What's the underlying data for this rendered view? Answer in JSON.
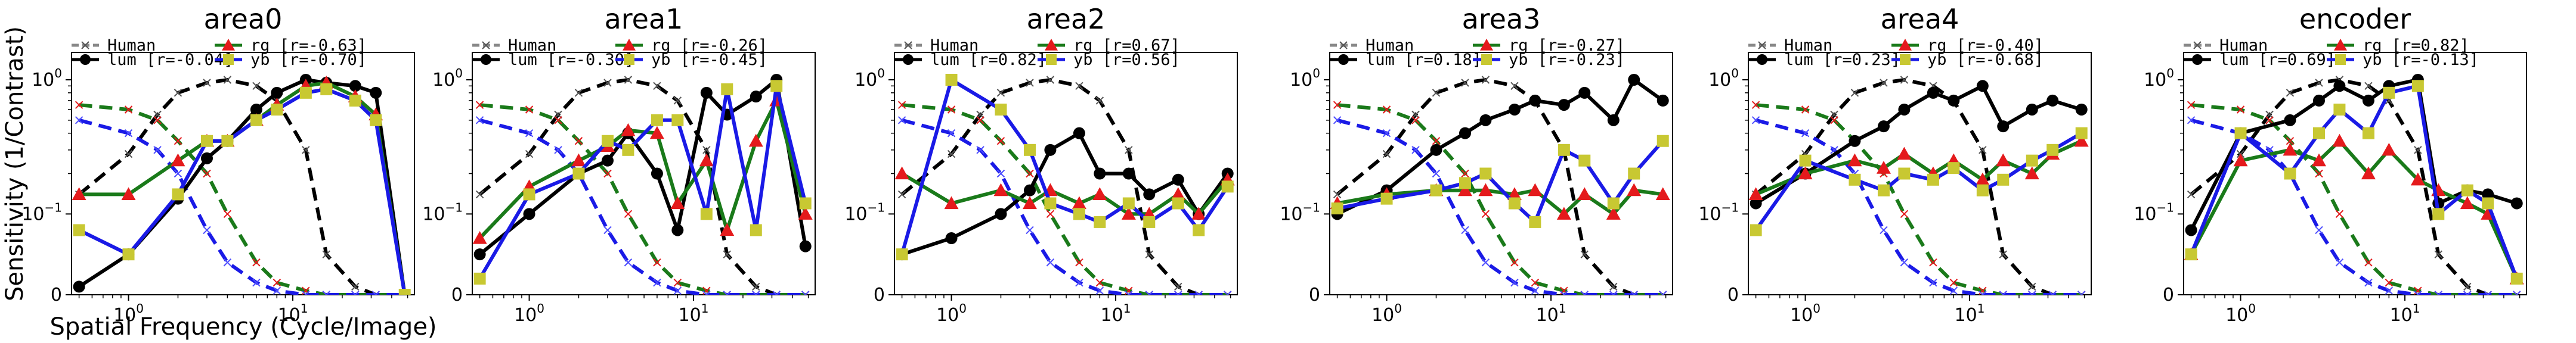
{
  "figure": {
    "ylabel": "Sensitivity (1/Contrast)",
    "xlabel": "Spatial Frequency (Cycle/Image)"
  },
  "colors": {
    "human": "#000000",
    "lum": "#000000",
    "rg": "#1a7a1a",
    "yb": "#1a1ae6",
    "rg_marker": "#e41a1c",
    "yb_marker": "#c8c832",
    "human_rg_marker": "#e41a1c",
    "human_yb_marker": "#4d4dff"
  },
  "chart_data": [
    {
      "type": "line",
      "title": "area0",
      "xscale": "symlog-like",
      "yscale": "symlog",
      "legend": [
        "Human",
        "lum [r=-0.04]",
        "rg    [r=-0.63]",
        "yb    [r=-0.70]"
      ],
      "x": [
        0.5,
        1,
        2,
        3,
        4,
        6,
        8,
        12,
        16,
        24,
        32,
        48
      ],
      "series": [
        {
          "name": "lum",
          "values": [
            0.01,
            0.05,
            0.13,
            0.26,
            0.35,
            0.6,
            0.8,
            1.0,
            0.95,
            0.9,
            0.8,
            0.0
          ]
        },
        {
          "name": "rg",
          "values": [
            0.14,
            0.14,
            0.25,
            0.35,
            0.35,
            0.5,
            0.65,
            0.9,
            0.95,
            0.75,
            0.55,
            0.0
          ]
        },
        {
          "name": "yb",
          "values": [
            0.08,
            0.05,
            0.14,
            0.35,
            0.35,
            0.5,
            0.6,
            0.8,
            0.85,
            0.7,
            0.5,
            0.0
          ]
        }
      ]
    },
    {
      "type": "line",
      "title": "area1",
      "xscale": "symlog-like",
      "yscale": "symlog",
      "legend": [
        "Human",
        "lum [r=-0.30]",
        "rg    [r=-0.26]",
        "yb    [r=-0.45]"
      ],
      "x": [
        0.5,
        1,
        2,
        3,
        4,
        6,
        8,
        12,
        16,
        24,
        32,
        48
      ],
      "series": [
        {
          "name": "lum",
          "values": [
            0.05,
            0.1,
            0.2,
            0.25,
            0.4,
            0.2,
            0.08,
            0.8,
            0.55,
            0.75,
            1.0,
            0.06
          ]
        },
        {
          "name": "rg",
          "values": [
            0.07,
            0.16,
            0.25,
            0.32,
            0.42,
            0.4,
            0.12,
            0.25,
            0.08,
            0.35,
            0.7,
            0.1
          ]
        },
        {
          "name": "yb",
          "values": [
            0.02,
            0.14,
            0.2,
            0.35,
            0.3,
            0.5,
            0.5,
            0.1,
            0.85,
            0.08,
            0.9,
            0.12
          ]
        }
      ]
    },
    {
      "type": "line",
      "title": "area2",
      "xscale": "symlog-like",
      "yscale": "symlog",
      "legend": [
        "Human",
        "lum [r=0.82]",
        "rg    [r=0.67]",
        "yb    [r=0.56]"
      ],
      "x": [
        0.5,
        1,
        2,
        3,
        4,
        6,
        8,
        12,
        16,
        24,
        32,
        48
      ],
      "series": [
        {
          "name": "lum",
          "values": [
            0.05,
            0.07,
            0.1,
            0.15,
            0.3,
            0.4,
            0.2,
            0.2,
            0.14,
            0.18,
            0.1,
            0.2
          ]
        },
        {
          "name": "rg",
          "values": [
            0.2,
            0.12,
            0.15,
            0.12,
            0.15,
            0.12,
            0.14,
            0.1,
            0.1,
            0.14,
            0.1,
            0.18
          ]
        },
        {
          "name": "yb",
          "values": [
            0.05,
            1.0,
            0.6,
            0.3,
            0.12,
            0.1,
            0.09,
            0.12,
            0.09,
            0.12,
            0.08,
            0.16
          ]
        }
      ]
    },
    {
      "type": "line",
      "title": "area3",
      "xscale": "symlog-like",
      "yscale": "symlog",
      "legend": [
        "Human",
        "lum [r=0.18]",
        "rg    [r=-0.27]",
        "yb    [r=-0.23]"
      ],
      "x": [
        0.5,
        1,
        2,
        3,
        4,
        6,
        8,
        12,
        16,
        24,
        32,
        48
      ],
      "series": [
        {
          "name": "lum",
          "values": [
            0.1,
            0.15,
            0.3,
            0.4,
            0.5,
            0.6,
            0.7,
            0.65,
            0.8,
            0.5,
            1.0,
            0.7
          ]
        },
        {
          "name": "rg",
          "values": [
            0.12,
            0.14,
            0.15,
            0.15,
            0.15,
            0.14,
            0.15,
            0.1,
            0.14,
            0.1,
            0.15,
            0.14
          ]
        },
        {
          "name": "yb",
          "values": [
            0.11,
            0.13,
            0.15,
            0.17,
            0.2,
            0.12,
            0.09,
            0.3,
            0.25,
            0.12,
            0.2,
            0.35
          ]
        }
      ]
    },
    {
      "type": "line",
      "title": "area4",
      "xscale": "symlog-like",
      "yscale": "symlog",
      "legend": [
        "Human",
        "lum [r=0.23]",
        "rg    [r=-0.40]",
        "yb    [r=-0.68]"
      ],
      "x": [
        0.5,
        1,
        2,
        3,
        4,
        6,
        8,
        12,
        16,
        24,
        32,
        48
      ],
      "series": [
        {
          "name": "lum",
          "values": [
            0.12,
            0.2,
            0.35,
            0.45,
            0.6,
            0.8,
            0.7,
            0.9,
            0.45,
            0.6,
            0.7,
            0.6
          ]
        },
        {
          "name": "rg",
          "values": [
            0.14,
            0.2,
            0.25,
            0.22,
            0.28,
            0.2,
            0.25,
            0.18,
            0.25,
            0.2,
            0.28,
            0.35
          ]
        },
        {
          "name": "yb",
          "values": [
            0.08,
            0.25,
            0.18,
            0.15,
            0.2,
            0.18,
            0.22,
            0.15,
            0.18,
            0.25,
            0.3,
            0.4
          ]
        }
      ]
    },
    {
      "type": "line",
      "title": "encoder",
      "xscale": "symlog-like",
      "yscale": "symlog",
      "legend": [
        "Human",
        "lum [r=0.69]",
        "rg    [r=0.82]",
        "yb    [r=-0.13]"
      ],
      "x": [
        0.5,
        1,
        2,
        3,
        4,
        6,
        8,
        12,
        16,
        24,
        32,
        48
      ],
      "series": [
        {
          "name": "lum",
          "values": [
            0.08,
            0.4,
            0.5,
            0.7,
            0.9,
            0.7,
            0.9,
            1.0,
            0.12,
            0.15,
            0.14,
            0.12
          ]
        },
        {
          "name": "rg",
          "values": [
            0.05,
            0.25,
            0.3,
            0.25,
            0.35,
            0.2,
            0.3,
            0.18,
            0.15,
            0.12,
            0.1,
            0.02
          ]
        },
        {
          "name": "yb",
          "values": [
            0.05,
            0.4,
            0.2,
            0.4,
            0.6,
            0.4,
            0.8,
            0.9,
            0.1,
            0.15,
            0.12,
            0.02
          ]
        }
      ]
    }
  ],
  "human_curves": {
    "x": [
      0.5,
      1,
      1.5,
      2,
      3,
      4,
      6,
      8,
      12,
      16,
      24,
      32,
      48
    ],
    "lum": [
      0.14,
      0.28,
      0.55,
      0.8,
      0.95,
      1.0,
      0.9,
      0.7,
      0.3,
      0.05,
      0.01,
      0.0,
      0.0
    ],
    "rg": [
      0.65,
      0.6,
      0.5,
      0.35,
      0.2,
      0.1,
      0.04,
      0.015,
      0.005,
      0.0,
      0.0,
      0.0,
      0.0
    ],
    "yb": [
      0.5,
      0.4,
      0.3,
      0.2,
      0.08,
      0.04,
      0.015,
      0.005,
      0.0,
      0.0,
      0.0,
      0.0,
      0.0
    ]
  },
  "ticks": {
    "x": [
      {
        "value": 1,
        "base": "10",
        "exp": "0"
      },
      {
        "value": 10,
        "base": "10",
        "exp": "1"
      }
    ],
    "y": [
      {
        "value": 0,
        "base": "0",
        "exp": ""
      },
      {
        "value": 0.1,
        "base": "10",
        "exp": "−1"
      },
      {
        "value": 1,
        "base": "10",
        "exp": "0"
      }
    ]
  }
}
